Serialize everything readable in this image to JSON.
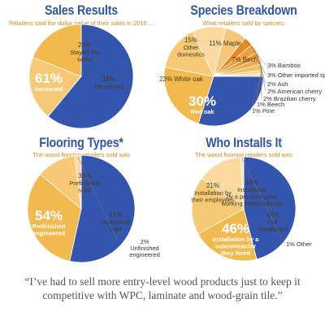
{
  "colors": {
    "title": "#2f56a8",
    "subtitle": "#d8891c",
    "blue": "#3355ae",
    "orange": "#f2b94e",
    "light_orange": "#f7c976",
    "peach": "#fbd9a0",
    "dark_orange": "#e58a1f"
  },
  "chart_data": [
    {
      "type": "pie",
      "title": "Sales Results",
      "subtitle": "Retailers said the dollar value of their sales in 2016 ...",
      "slices": [
        {
          "label": "Increased",
          "value": 61,
          "display": "61%",
          "color": "#3355ae"
        },
        {
          "label": "Stayed the same",
          "value": 20,
          "display": "20%",
          "color": "#f7c976"
        },
        {
          "label": "Decreased",
          "value": 19,
          "display": "19%",
          "color": "#f2b94e"
        }
      ]
    },
    {
      "type": "pie",
      "title": "Species Breakdown",
      "subtitle": "What retailers sold by species:",
      "slices": [
        {
          "label": "Red oak",
          "value": 30,
          "display": "30%",
          "color": "#3355ae"
        },
        {
          "label": "White oak",
          "value": 23,
          "display": "23%",
          "color": "#f2b94e"
        },
        {
          "label": "Other domestics",
          "value": 15,
          "display": "15%",
          "color": "#f7c976"
        },
        {
          "label": "Maple",
          "value": 11,
          "display": "11%",
          "color": "#fbd9a0"
        },
        {
          "label": "Birch",
          "value": 7,
          "display": "7%",
          "color": "#f7c67a"
        },
        {
          "label": "Bamboo",
          "value": 3,
          "display": "3%",
          "color": "#e58a1f"
        },
        {
          "label": "Other imported species",
          "value": 3,
          "display": "3%",
          "color": "#f0a03a"
        },
        {
          "label": "Ash",
          "value": 2,
          "display": "2%",
          "color": "#e9932a"
        },
        {
          "label": "American cherry",
          "value": 2,
          "display": "2%",
          "color": "#f2ac45"
        },
        {
          "label": "Brazilian cherry",
          "value": 2,
          "display": "2%",
          "color": "#f6bd5e"
        },
        {
          "label": "Beech",
          "value": 1,
          "display": "1%",
          "color": "#f9cf84"
        },
        {
          "label": "Pine",
          "value": 1,
          "display": "1%",
          "color": "#fbdfa8"
        }
      ]
    },
    {
      "type": "pie",
      "title": "Flooring Types*",
      "subtitle": "The wood flooring retailers sold was (by volume):",
      "slices": [
        {
          "label": "Prefinished engineered",
          "value": 54,
          "display": "54%",
          "color": "#3355ae"
        },
        {
          "label": "Prefinished solid",
          "value": 33,
          "display": "33%",
          "color": "#f2b94e"
        },
        {
          "label": "Unfinished solid",
          "value": 12,
          "display": "12%",
          "color": "#f7c976"
        },
        {
          "label": "Unfinished engineered",
          "value": 2,
          "display": "2%",
          "color": "#fbd9a0"
        }
      ]
    },
    {
      "type": "pie",
      "title": "Who Installs It",
      "subtitle": "The wood flooring retailers sold was for...",
      "slices": [
        {
          "label": "Installation by a subcontractor they hired",
          "value": 46,
          "display": "46%",
          "color": "#3355ae"
        },
        {
          "label": "Installation by their employees",
          "value": 21,
          "display": "21%",
          "color": "#f2b94e"
        },
        {
          "label": "Installation by a pro contractor working independently",
          "value": 18,
          "display": "18%",
          "color": "#f7c976"
        },
        {
          "label": "DIY installation",
          "value": 14,
          "display": "14%",
          "color": "#fbd9a0"
        },
        {
          "label": "Other",
          "value": 1,
          "display": "1%",
          "color": "#fbe3b8"
        }
      ]
    }
  ],
  "quote": "“I’ve had to sell more entry-level wood products just to keep it competitive with WPC, laminate and wood-grain tile.”"
}
